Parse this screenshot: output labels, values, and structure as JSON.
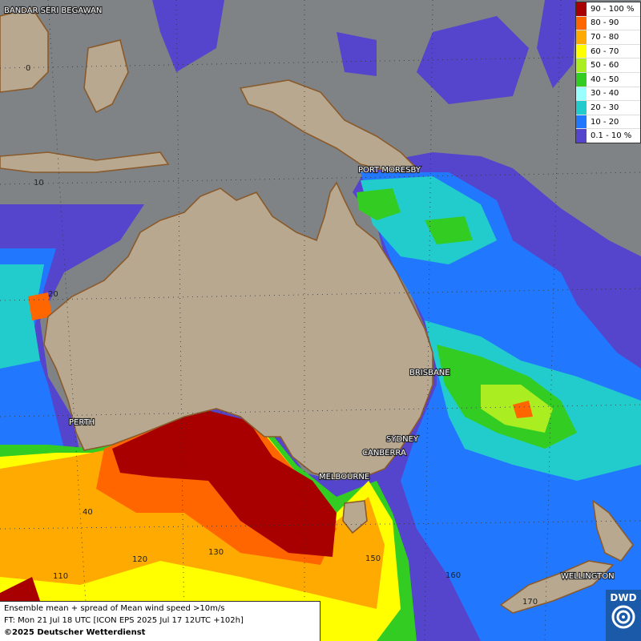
{
  "title_lines": {
    "line1": "Ensemble mean + spread of Mean wind speed >10m/s",
    "line2": "FT: Mon 21 Jul 18 UTC [ICON EPS 2025 Jul 17 12UTC +102h]",
    "line3": "©2025 Deutscher Wetterdienst"
  },
  "logo_text": "DWD",
  "legend": [
    {
      "label": "90 - 100 %",
      "color": "#a80000"
    },
    {
      "label": "80 - 90",
      "color": "#ff6600"
    },
    {
      "label": "70 - 80",
      "color": "#ffaa00"
    },
    {
      "label": "60 - 70",
      "color": "#ffff00"
    },
    {
      "label": "50 - 60",
      "color": "#aaee22"
    },
    {
      "label": "40 - 50",
      "color": "#33cc22"
    },
    {
      "label": "30 - 40",
      "color": "#99ffff"
    },
    {
      "label": "20 - 30",
      "color": "#22cccc"
    },
    {
      "label": "10 - 20",
      "color": "#2277ff"
    },
    {
      "label": "0.1 - 10 %",
      "color": "#5544cc"
    }
  ],
  "cities": {
    "bandar": "BANDAR SERI BEGAWAN",
    "port_moresby": "PORT MORESBY",
    "brisbane": "BRISBANE",
    "perth": "PERTH",
    "sydney": "SYDNEY",
    "canberra": "CANBERRA",
    "melbourne": "MELBOURNE",
    "wellington": "WELLINGTON"
  },
  "grid_labels": {
    "lat_0": "0",
    "lat_10": "10",
    "lat_20": "20",
    "lat_40": "40",
    "lon_110": "110",
    "lon_120": "120",
    "lon_130": "130",
    "lon_150": "150",
    "lon_160": "160",
    "lon_170": "170"
  }
}
